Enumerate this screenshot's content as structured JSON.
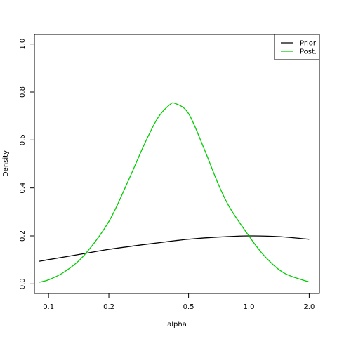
{
  "chart_data": {
    "type": "line",
    "xlabel": "alpha",
    "ylabel": "Density",
    "x_scale": "log",
    "xlim": [
      0.085,
      2.25
    ],
    "ylim": [
      -0.04,
      1.04
    ],
    "x_ticks": [
      {
        "value": 0.1,
        "label": "0.1"
      },
      {
        "value": 0.2,
        "label": "0.2"
      },
      {
        "value": 0.5,
        "label": "0.5"
      },
      {
        "value": 1.0,
        "label": "1.0"
      },
      {
        "value": 2.0,
        "label": "2.0"
      }
    ],
    "y_ticks": [
      {
        "value": 0.0,
        "label": "0.0"
      },
      {
        "value": 0.2,
        "label": "0.2"
      },
      {
        "value": 0.4,
        "label": "0.4"
      },
      {
        "value": 0.6,
        "label": "0.6"
      },
      {
        "value": 0.8,
        "label": "0.8"
      },
      {
        "value": 1.0,
        "label": "1.0"
      }
    ],
    "legend_position": "top-right",
    "series": [
      {
        "name": "Prior",
        "color": "#000000",
        "x": [
          0.09,
          0.1,
          0.15,
          0.2,
          0.3,
          0.4,
          0.5,
          0.7,
          1.0,
          1.4,
          2.0
        ],
        "y": [
          0.094,
          0.101,
          0.126,
          0.144,
          0.164,
          0.177,
          0.186,
          0.195,
          0.2,
          0.197,
          0.186
        ]
      },
      {
        "name": "Post.",
        "color": "#00cd00",
        "x": [
          0.09,
          0.1,
          0.12,
          0.15,
          0.2,
          0.25,
          0.3,
          0.35,
          0.4,
          0.43,
          0.5,
          0.6,
          0.7,
          0.8,
          1.0,
          1.2,
          1.5,
          2.0
        ],
        "y": [
          0.007,
          0.017,
          0.05,
          0.118,
          0.26,
          0.43,
          0.58,
          0.69,
          0.745,
          0.752,
          0.71,
          0.56,
          0.42,
          0.32,
          0.2,
          0.115,
          0.045,
          0.008
        ]
      }
    ]
  }
}
